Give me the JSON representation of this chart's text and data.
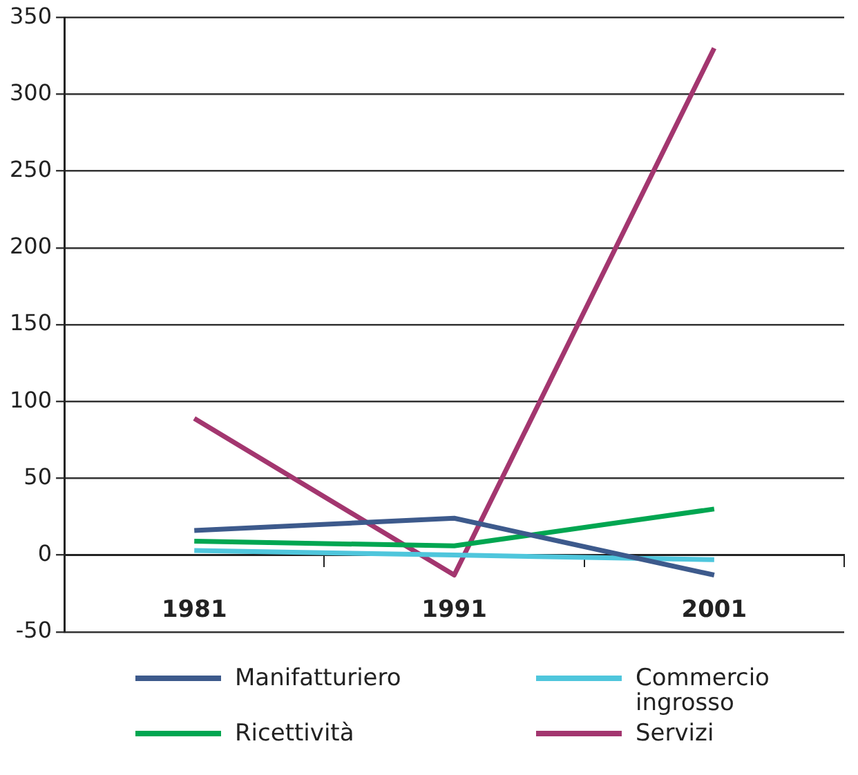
{
  "chart_data": {
    "type": "line",
    "categories": [
      "1981",
      "1991",
      "2001"
    ],
    "series": [
      {
        "name": "Manifatturiero",
        "color": "#3d5a8c",
        "values": [
          16,
          24,
          -13
        ]
      },
      {
        "name": "Ricettività",
        "color": "#00a651",
        "values": [
          9,
          6,
          30
        ]
      },
      {
        "name": "Commercio ingrosso",
        "color": "#4fc6dc",
        "values": [
          3,
          0,
          -3
        ]
      },
      {
        "name": "Servizi",
        "color": "#a3366f",
        "values": [
          89,
          -13,
          330
        ]
      }
    ],
    "ylim": [
      -50,
      350
    ],
    "yticks": [
      -50,
      0,
      50,
      100,
      150,
      200,
      250,
      300,
      350
    ],
    "grid": "y",
    "legend": "bottom",
    "marker": "none",
    "line_style": "solid"
  }
}
